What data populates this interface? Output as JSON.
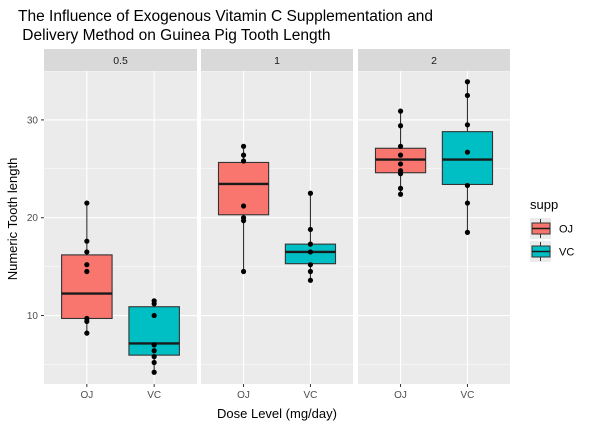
{
  "chart_data": {
    "type": "boxplot",
    "title_lines": [
      "The Influence of Exogenous Vitamin C Supplementation and",
      " Delivery Method on Guinea Pig Tooth Length"
    ],
    "xlabel": "Dose Level (mg/day)",
    "ylabel": "Numeric Tooth length",
    "ylim": [
      3,
      35
    ],
    "yticks": [
      10,
      20,
      30
    ],
    "facets": [
      "0.5",
      "1",
      "2"
    ],
    "categories": [
      "OJ",
      "VC"
    ],
    "legend": {
      "title": "supp",
      "position": "right",
      "entries": [
        {
          "label": "OJ",
          "color": "#F8766D"
        },
        {
          "label": "VC",
          "color": "#00BFC4"
        }
      ]
    },
    "grid": true,
    "colors": {
      "panel_bg": "#EBEBEB",
      "strip_bg": "#D9D9D9",
      "grid": "#FFFFFF",
      "OJ": "#F8766D",
      "VC": "#00BFC4"
    },
    "boxes": [
      {
        "facet": "0.5",
        "supp": "OJ",
        "min": 8.2,
        "q1": 9.7,
        "median": 12.25,
        "q3": 16.2,
        "max": 21.5,
        "points": [
          8.2,
          9.4,
          9.7,
          14.5,
          15.2,
          16.5,
          17.6,
          21.5
        ]
      },
      {
        "facet": "0.5",
        "supp": "VC",
        "min": 4.2,
        "q1": 5.95,
        "median": 7.15,
        "q3": 10.9,
        "max": 11.5,
        "points": [
          4.2,
          5.2,
          5.8,
          6.4,
          7.0,
          10.0,
          11.2,
          11.5
        ]
      },
      {
        "facet": "1",
        "supp": "OJ",
        "min": 14.5,
        "q1": 20.3,
        "median": 23.45,
        "q3": 25.65,
        "max": 27.3,
        "points": [
          14.5,
          19.7,
          20.0,
          21.2,
          25.8,
          26.4,
          27.3
        ]
      },
      {
        "facet": "1",
        "supp": "VC",
        "min": 13.6,
        "q1": 15.3,
        "median": 16.5,
        "q3": 17.3,
        "max": 22.5,
        "points": [
          13.6,
          14.5,
          15.2,
          16.5,
          17.3,
          18.8,
          22.5
        ]
      },
      {
        "facet": "2",
        "supp": "OJ",
        "min": 22.4,
        "q1": 24.6,
        "median": 25.95,
        "q3": 27.1,
        "max": 30.9,
        "points": [
          22.4,
          23.0,
          24.5,
          24.8,
          25.5,
          26.4,
          27.3,
          29.4,
          30.9
        ]
      },
      {
        "facet": "2",
        "supp": "VC",
        "min": 18.5,
        "q1": 23.4,
        "median": 25.95,
        "q3": 28.8,
        "max": 33.9,
        "points": [
          18.5,
          21.5,
          23.3,
          26.7,
          29.5,
          32.5,
          33.9
        ]
      }
    ]
  }
}
